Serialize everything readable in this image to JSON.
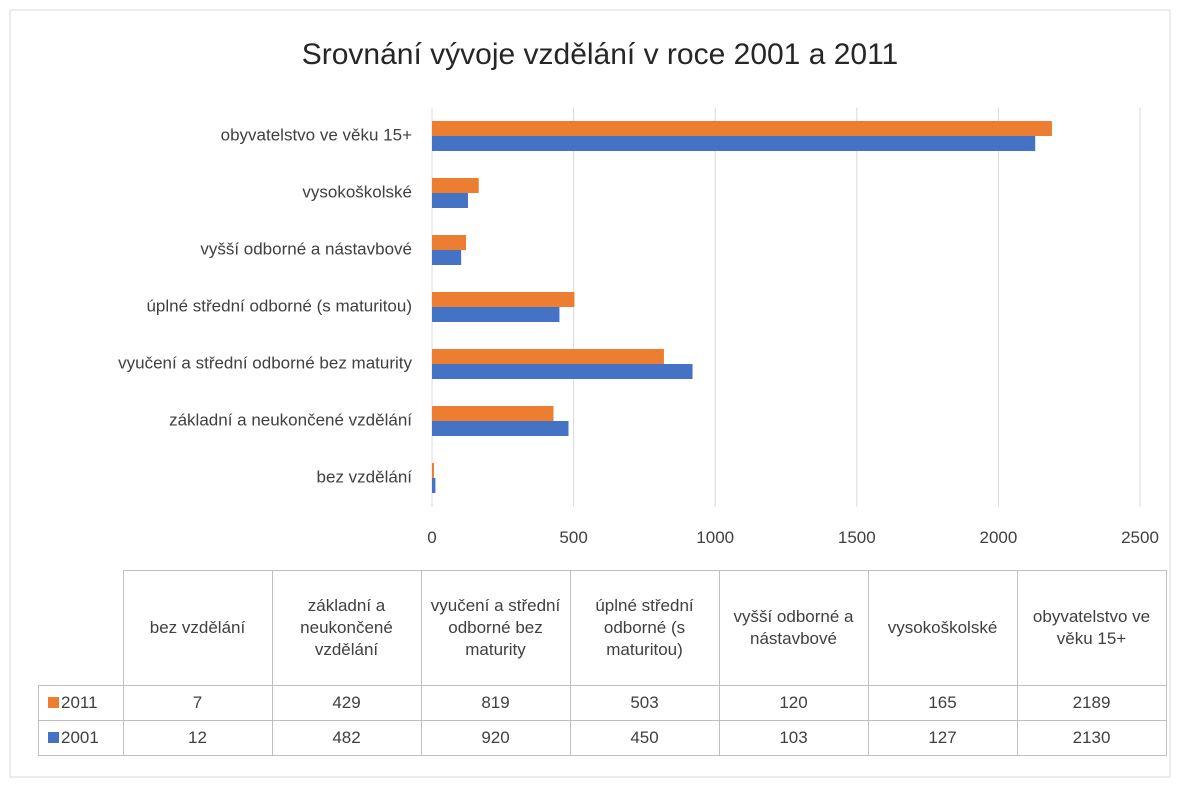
{
  "chart_data": {
    "type": "bar",
    "orientation": "horizontal",
    "title": "Srovnání vývoje vzdělání v roce 2001 a 2011",
    "categories": [
      "bez vzdělání",
      "základní a neukončené vzdělání",
      "vyučení a střední odborné bez maturity",
      "úplné střední odborné (s maturitou)",
      "vyšší odborné a nástavbové",
      "vysokoškolské",
      "obyvatelstvo ve věku 15+"
    ],
    "series": [
      {
        "name": "2011",
        "color": "#ed7d31",
        "values": [
          7,
          429,
          819,
          503,
          120,
          165,
          2189
        ]
      },
      {
        "name": "2001",
        "color": "#4472c4",
        "values": [
          12,
          482,
          920,
          450,
          103,
          127,
          2130
        ]
      }
    ],
    "xlim": [
      0,
      2500
    ],
    "xticks": [
      0,
      500,
      1000,
      1500,
      2000,
      2500
    ],
    "grid": true,
    "data_table": true
  }
}
